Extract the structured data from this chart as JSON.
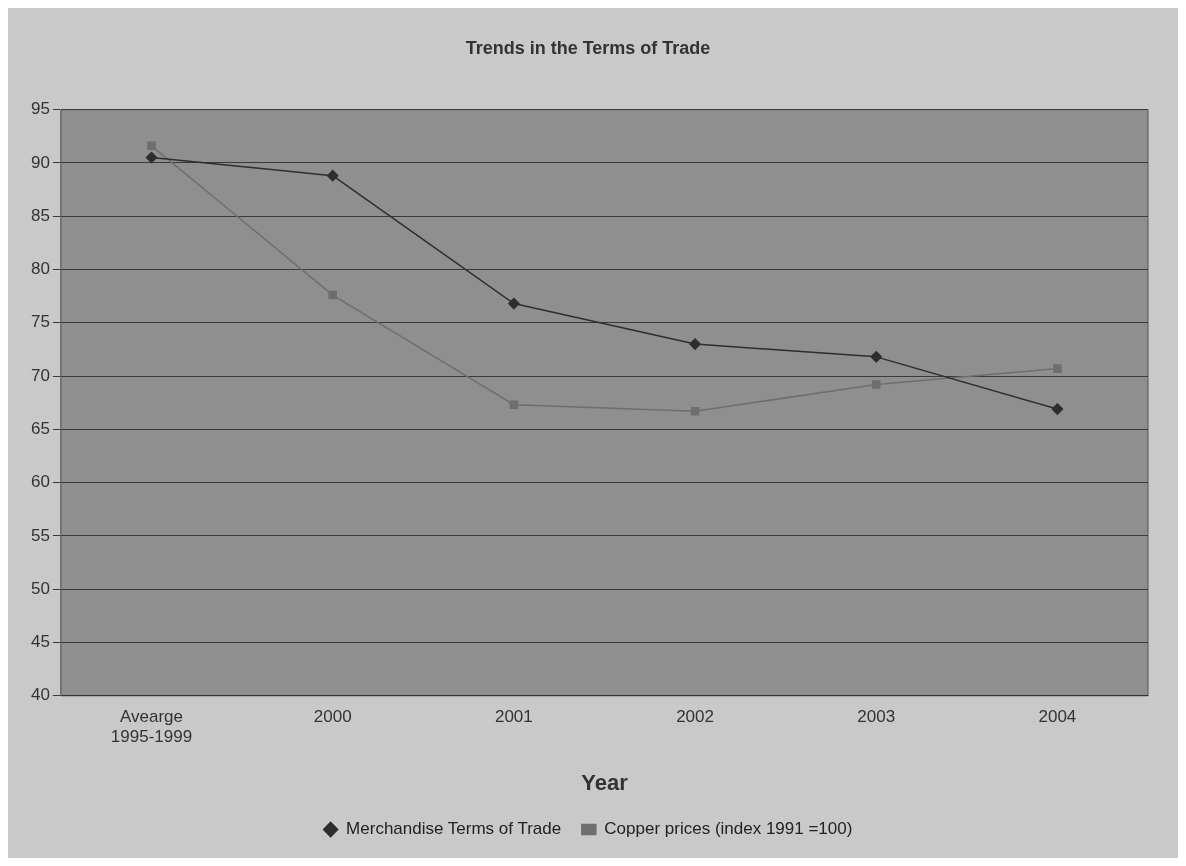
{
  "chart_data": {
    "type": "line",
    "title": "Trends in the Terms of Trade",
    "xlabel": "Year",
    "categories": [
      "Avearge 1995-1999",
      "2000",
      "2001",
      "2002",
      "2003",
      "2004"
    ],
    "series": [
      {
        "name": "Merchandise Terms of Trade",
        "color": "#2e2e2e",
        "marker": "diamond",
        "values": [
          90.5,
          88.8,
          76.8,
          73,
          71.8,
          66.9
        ]
      },
      {
        "name": "Copper prices (index 1991 =100)",
        "color": "#6e6e6e",
        "marker": "square",
        "values": [
          91.6,
          77.6,
          67.3,
          66.7,
          69.2,
          70.7
        ]
      }
    ],
    "ylim": [
      40,
      95
    ],
    "yticks": [
      40,
      45,
      50,
      55,
      60,
      65,
      70,
      75,
      80,
      85,
      90,
      95
    ],
    "grid": "y",
    "legend": "bottom",
    "line_style": "solid"
  }
}
